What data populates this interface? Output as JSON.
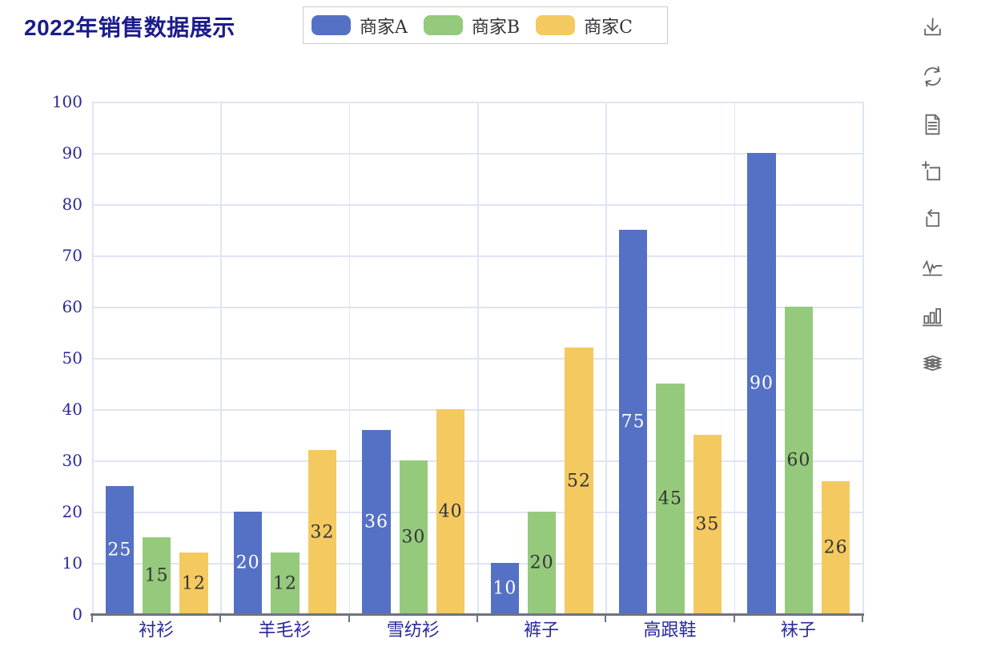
{
  "title": "2022年销售数据展示",
  "legend": {
    "items": [
      {
        "label": "商家A",
        "color": "#5571c5"
      },
      {
        "label": "商家B",
        "color": "#95ca7c"
      },
      {
        "label": "商家C",
        "color": "#f4c960"
      }
    ]
  },
  "toolbar": {
    "icons": [
      {
        "name": "save-image-icon"
      },
      {
        "name": "restore-icon"
      },
      {
        "name": "data-view-icon"
      },
      {
        "name": "zoom-select-icon"
      },
      {
        "name": "zoom-reset-icon"
      },
      {
        "name": "line-chart-icon"
      },
      {
        "name": "bar-chart-icon"
      },
      {
        "name": "stack-icon"
      }
    ]
  },
  "chart_data": {
    "type": "bar",
    "title": "2022年销售数据展示",
    "categories": [
      "衬衫",
      "羊毛衫",
      "雪纺衫",
      "裤子",
      "高跟鞋",
      "袜子"
    ],
    "series": [
      {
        "name": "商家A",
        "color": "#5571c5",
        "label_color": "#ffffff",
        "values": [
          25,
          20,
          36,
          10,
          75,
          90
        ]
      },
      {
        "name": "商家B",
        "color": "#95ca7c",
        "label_color": "#333333",
        "values": [
          15,
          12,
          30,
          20,
          45,
          60
        ]
      },
      {
        "name": "商家C",
        "color": "#f4c960",
        "label_color": "#333333",
        "values": [
          12,
          32,
          40,
          52,
          35,
          26
        ]
      }
    ],
    "xlabel": "",
    "ylabel": "",
    "ylim": [
      0,
      100
    ],
    "ytick_step": 10,
    "grid": true,
    "value_labels": "inside",
    "legend_position": "top"
  },
  "colors": {
    "title_text": "#1b1b8c",
    "axis_text": "#28289b",
    "grid_line": "#e0e5f3",
    "axis_line": "#6f7380",
    "toolbar_icon": "#666666",
    "legend_text": "#333333",
    "legend_border": "#cbcbcb",
    "page_bg": "#ffffff"
  }
}
